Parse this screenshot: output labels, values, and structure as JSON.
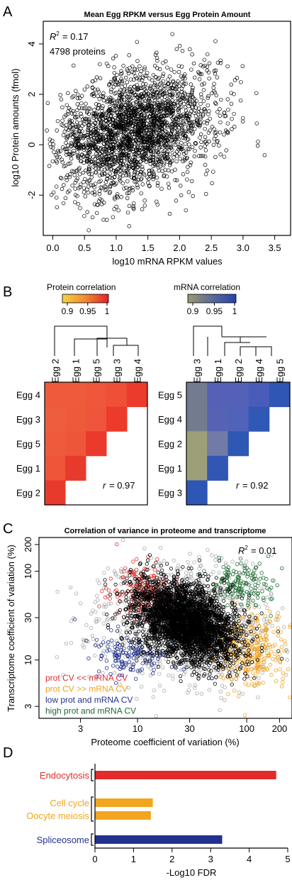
{
  "panel_letters": {
    "a": "A",
    "b": "B",
    "c": "C",
    "d": "D"
  },
  "chart_data": [
    {
      "id": "A",
      "type": "scatter",
      "title": "Mean Egg RPKM versus Egg Protein Amount",
      "xlabel": "log10 mRNA RPKM values",
      "ylabel": "log10 Protein amounts (fmol)",
      "xlim": [
        -0.15,
        3.75
      ],
      "ylim": [
        -3.6,
        4.9
      ],
      "xticks": [
        "0.0",
        "0.5",
        "1.0",
        "1.5",
        "2.0",
        "2.5",
        "3.0",
        "3.5"
      ],
      "yticks": [
        "-2",
        "0",
        "2",
        "4"
      ],
      "annotation_r2_label": "R",
      "annotation_r2_value": "= 0.17",
      "annotation_count": "4798 proteins",
      "point_cloud": {
        "n_drawn": 2400,
        "center": [
          1.3,
          0.55
        ],
        "spread": [
          0.62,
          1.15
        ],
        "marker": "open circle"
      }
    },
    {
      "id": "B-left",
      "type": "heatmap",
      "legend_title": "Protein correlation",
      "legend_ticks": [
        "0.9",
        "0.95",
        "1"
      ],
      "legend_colors": [
        "#f5d442",
        "#e8202a"
      ],
      "column_labels": [
        "Egg 2",
        "Egg 1",
        "Egg 5",
        "Egg 3",
        "Egg 4"
      ],
      "row_labels": [
        "Egg 4",
        "Egg 3",
        "Egg 5",
        "Egg 1",
        "Egg 2"
      ],
      "cells": [
        [
          "#ee5a3b",
          "#ee5b3a",
          "#ee573a",
          "#ef4f36",
          "#ec3b2c"
        ],
        [
          "#ee5e3c",
          "#ee5a39",
          "#ee553a",
          "#ec3a2b"
        ],
        [
          "#ef5a3b",
          "#ee563a",
          "#ea3a2c"
        ],
        [
          "#ef5538",
          "#e83a2c"
        ],
        [
          "#e83a2c"
        ]
      ],
      "annotation_r_label": "r",
      "annotation_r_value": "= 0.97"
    },
    {
      "id": "B-right",
      "type": "heatmap",
      "legend_title": "mRNA correlation",
      "legend_ticks": [
        "0.9",
        "0.95",
        "1"
      ],
      "legend_colors": [
        "#9c9a6e",
        "#2244aa"
      ],
      "column_labels": [
        "Egg 3",
        "Egg 1",
        "Egg 2",
        "Egg 4",
        "Egg 5"
      ],
      "row_labels": [
        "Egg 5",
        "Egg 4",
        "Egg 2",
        "Egg 1",
        "Egg 3"
      ],
      "cells": [
        [
          "#727b90",
          "#5461b7",
          "#5362b8",
          "#4a5cba",
          "#2f56b5"
        ],
        [
          "#737c8f",
          "#5563b5",
          "#5163b9",
          "#3059b5"
        ],
        [
          "#9d9f78",
          "#727ba8",
          "#2f57b4"
        ],
        [
          "#9d9f79",
          "#3156b3"
        ],
        [
          "#2e56b6"
        ]
      ],
      "annotation_r_label": "r",
      "annotation_r_value": "= 0.92"
    },
    {
      "id": "C",
      "type": "scatter",
      "title": "Correlation of variance in proteome and transcriptome",
      "xlabel": "Proteome coefficient of variation (%)",
      "ylabel": "Transcriptome coefficient of variation (%)",
      "xscale": "log",
      "yscale": "log",
      "xlim": [
        1.25,
        260
      ],
      "ylim": [
        2.2,
        240
      ],
      "xticks": [
        "3",
        "10",
        "30",
        "100",
        "200"
      ],
      "yticks": [
        "3",
        "10",
        "30",
        "100",
        "200"
      ],
      "annotation_r2_label": "R",
      "annotation_r2_value": "= 0.01",
      "series": [
        {
          "name": "prot CV << mRNA CV",
          "color": "#e03030"
        },
        {
          "name": "prot CV >> mRNA CV",
          "color": "#f0a21e"
        },
        {
          "name": "low prot and mRNA CV",
          "color": "#23318e"
        },
        {
          "name": "high prot and mRNA CV",
          "color": "#1f6b34"
        }
      ],
      "background_colors": {
        "all_points": "#000000",
        "non_significant": "#aaaaaa"
      }
    },
    {
      "id": "D",
      "type": "bar",
      "orientation": "horizontal",
      "xlabel": "-Log10 FDR",
      "xlim": [
        0,
        5
      ],
      "xticks": [
        "0",
        "1",
        "2",
        "3",
        "4",
        "5"
      ],
      "categories": [
        "Endocytosis",
        "Cell cycle",
        "Oocyte meiosis",
        "Spliceosome"
      ],
      "values": [
        4.7,
        1.5,
        1.45,
        3.3
      ],
      "colors": [
        "#e22b2b",
        "#f2a51f",
        "#f2a51f",
        "#23318e"
      ],
      "brackets": [
        [
          "Endocytosis"
        ],
        [
          "Cell cycle",
          "Oocyte meiosis"
        ],
        [
          "Spliceosome"
        ]
      ]
    }
  ]
}
